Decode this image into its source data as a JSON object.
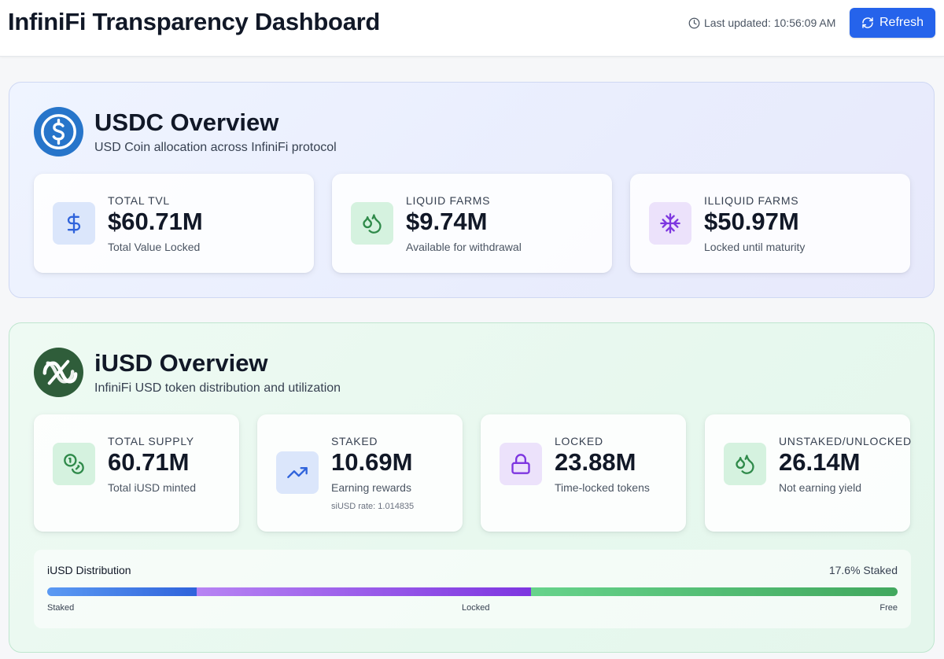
{
  "header": {
    "title": "InfiniFi Transparency Dashboard",
    "last_updated": "Last updated: 10:56:09 AM",
    "refresh_label": "Refresh"
  },
  "usdc": {
    "title": "USDC Overview",
    "subtitle": "USD Coin allocation across InfiniFi protocol",
    "cards": [
      {
        "label": "TOTAL TVL",
        "value": "$60.71M",
        "sub": "Total Value Locked",
        "icon": "dollar-icon"
      },
      {
        "label": "LIQUID FARMS",
        "value": "$9.74M",
        "sub": "Available for withdrawal",
        "icon": "droplets-icon"
      },
      {
        "label": "ILLIQUID FARMS",
        "value": "$50.97M",
        "sub": "Locked until maturity",
        "icon": "snowflake-icon"
      }
    ]
  },
  "iusd": {
    "title": "iUSD Overview",
    "subtitle": "InfiniFi USD token distribution and utilization",
    "cards": [
      {
        "label": "TOTAL SUPPLY",
        "value": "60.71M",
        "sub": "Total iUSD minted",
        "icon": "coins-icon"
      },
      {
        "label": "STAKED",
        "value": "10.69M",
        "sub": "Earning rewards",
        "note": "siUSD rate: 1.014835",
        "icon": "trending-up-icon"
      },
      {
        "label": "LOCKED",
        "value": "23.88M",
        "sub": "Time-locked tokens",
        "icon": "lock-icon"
      },
      {
        "label": "UNSTAKED/UNLOCKED",
        "value": "26.14M",
        "sub": "Not earning yield",
        "icon": "droplets-icon"
      }
    ]
  },
  "distribution": {
    "title": "iUSD Distribution",
    "staked_pct_label": "17.6% Staked",
    "segments": [
      {
        "label": "Staked",
        "fraction": 0.176
      },
      {
        "label": "Locked",
        "fraction": 0.393
      },
      {
        "label": "Free",
        "fraction": 0.431
      }
    ]
  },
  "colors": {
    "accent": "#2563eb",
    "usdc_logo": "#2775ca",
    "iusd_logo": "#2f5d3a",
    "icon_blue": "#2f63db",
    "icon_green": "#2f8a4a",
    "icon_purple": "#7d36e0"
  }
}
